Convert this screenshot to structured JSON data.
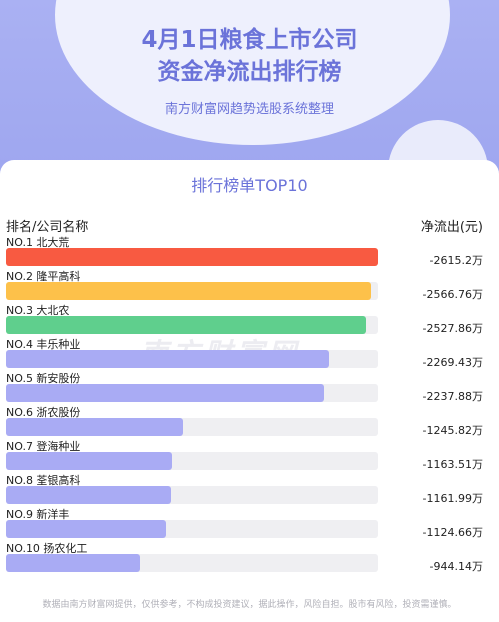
{
  "header": {
    "title_line1": "4月1日粮食上市公司",
    "title_line2": "资金净流出排行榜",
    "subtitle": "南方财富网趋势选股系统整理"
  },
  "card": {
    "title": "排行榜单TOP10",
    "col_left": "排名/公司名称",
    "col_right": "净流出(元)",
    "watermark": "南方财富网"
  },
  "footer": "数据由南方财富网提供，仅供参考，不构成投资建议，据此操作，风险自担。股市有风险，投资需谨慎。",
  "colors": {
    "header_bg": "#a9b0f2",
    "accent": "#6b73d9",
    "rank1": "#f85a41",
    "rank2": "#fdc14a",
    "rank3": "#5fcf8d",
    "rest": "#a9abf4",
    "track": "#efeff2"
  },
  "chart_data": {
    "type": "bar",
    "unit": "万",
    "categories": [
      "NO.1 北大荒",
      "NO.2 隆平高科",
      "NO.3 大北农",
      "NO.4 丰乐种业",
      "NO.5 新安股份",
      "NO.6 浙农股份",
      "NO.7 登海种业",
      "NO.8 荃银高科",
      "NO.9 新洋丰",
      "NO.10 扬农化工"
    ],
    "values": [
      -2615.2,
      -2566.76,
      -2527.86,
      -2269.43,
      -2237.88,
      -1245.82,
      -1163.51,
      -1161.99,
      -1124.66,
      -944.14
    ],
    "value_labels": [
      "-2615.2万",
      "-2566.76万",
      "-2527.86万",
      "-2269.43万",
      "-2237.88万",
      "-1245.82万",
      "-1163.51万",
      "-1161.99万",
      "-1124.66万",
      "-944.14万"
    ]
  }
}
